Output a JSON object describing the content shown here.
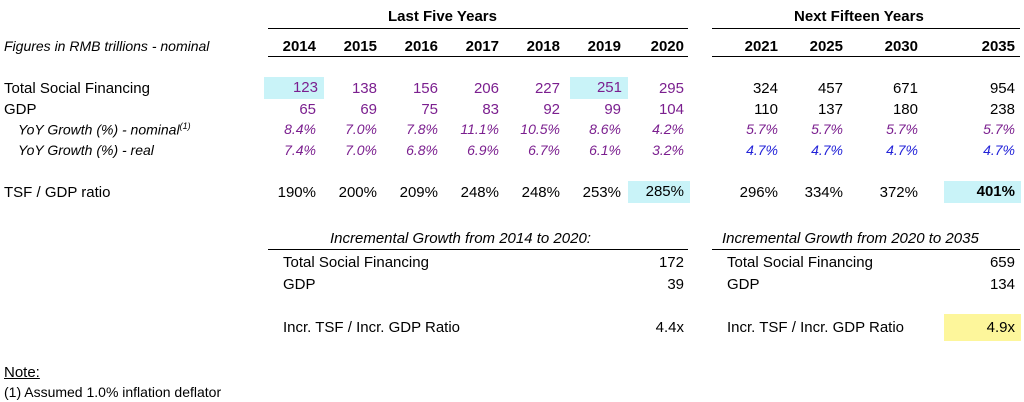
{
  "headers": {
    "last_five": "Last Five Years",
    "next_fifteen": "Next Fifteen Years",
    "figures_note": "Figures in RMB trillions - nominal"
  },
  "years_hist": [
    "2014",
    "2015",
    "2016",
    "2017",
    "2018",
    "2019",
    "2020"
  ],
  "years_proj": [
    "2021",
    "2025",
    "2030",
    "2035"
  ],
  "rows": {
    "tsf": {
      "label": "Total Social Financing",
      "hist": [
        "123",
        "138",
        "156",
        "206",
        "227",
        "251",
        "295"
      ],
      "proj": [
        "324",
        "457",
        "671",
        "954"
      ]
    },
    "gdp": {
      "label": "GDP",
      "hist": [
        "65",
        "69",
        "75",
        "83",
        "92",
        "99",
        "104"
      ],
      "proj": [
        "110",
        "137",
        "180",
        "238"
      ]
    },
    "yoy_nominal": {
      "label": "YoY Growth (%) - nominal",
      "footnote_mark": "(1)",
      "hist": [
        "8.4%",
        "7.0%",
        "7.8%",
        "11.1%",
        "10.5%",
        "8.6%",
        "4.2%"
      ],
      "proj": [
        "5.7%",
        "5.7%",
        "5.7%",
        "5.7%"
      ]
    },
    "yoy_real": {
      "label": "YoY Growth (%) - real",
      "hist": [
        "7.4%",
        "7.0%",
        "6.8%",
        "6.9%",
        "6.7%",
        "6.1%",
        "3.2%"
      ],
      "proj": [
        "4.7%",
        "4.7%",
        "4.7%",
        "4.7%"
      ]
    },
    "ratio": {
      "label": "TSF / GDP ratio",
      "hist": [
        "190%",
        "200%",
        "209%",
        "248%",
        "248%",
        "253%",
        "285%"
      ],
      "proj": [
        "296%",
        "334%",
        "372%",
        "401%"
      ]
    }
  },
  "incremental_left": {
    "title": "Incremental Growth from 2014 to 2020:",
    "tsf_label": "Total Social Financing",
    "tsf_value": "172",
    "gdp_label": "GDP",
    "gdp_value": "39",
    "ratio_label": "Incr. TSF / Incr. GDP Ratio",
    "ratio_value": "4.4x"
  },
  "incremental_right": {
    "title": "Incremental Growth from 2020 to 2035",
    "tsf_label": "Total Social Financing",
    "tsf_value": "659",
    "gdp_label": "GDP",
    "gdp_value": "134",
    "ratio_label": "Incr. TSF / Incr. GDP Ratio",
    "ratio_value": "4.9x"
  },
  "notes": {
    "heading": "Note:",
    "line1": "(1) Assumed 1.0% inflation deflator"
  },
  "colors": {
    "purple": "#7b1f8f",
    "blue": "#2323d8",
    "highlight_cyan": "#c9f3f8",
    "highlight_yellow": "#fdf69b"
  }
}
